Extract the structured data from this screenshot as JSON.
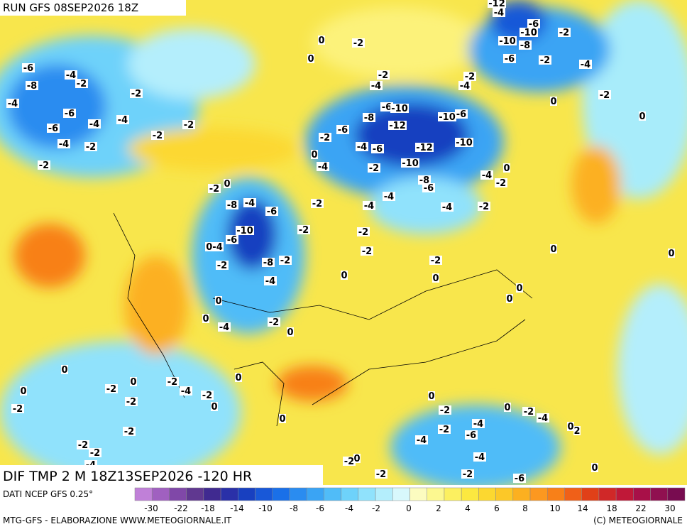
{
  "header": {
    "run": "RUN GFS 08SEP2026 18Z"
  },
  "map": {
    "field": "DIF TMP 2 M 18Z13SEP2026 -120 HR",
    "labels": [
      "-12",
      "-4",
      "-6",
      "-10",
      "-2",
      "0",
      "-2",
      "-10",
      "-8",
      "-6",
      "-8",
      "-4",
      "-2",
      "-4",
      "-2",
      "-6",
      "-4",
      "-4",
      "-6",
      "-2",
      "-2",
      "-4",
      "-2",
      "-2",
      "0",
      "-2",
      "-4",
      "-2",
      "-4",
      "-2",
      "-6",
      "-4",
      "-2",
      "0",
      "0",
      "-6",
      "-10",
      "-8",
      "-12",
      "-6",
      "-10",
      "-2",
      "-6",
      "-4",
      "-6",
      "-12",
      "-10",
      "0",
      "-4",
      "-2",
      "-10",
      "-8",
      "-6",
      "-4",
      "0",
      "-2",
      "-2",
      "0",
      "-8",
      "-4",
      "-6",
      "-2",
      "-4",
      "-4",
      "-4",
      "-2",
      "-10",
      "-6",
      "0-4",
      "-2",
      "-2",
      "-2",
      "-8",
      "-2",
      "-2",
      "-4",
      "0",
      "-2",
      "0",
      "0",
      "0",
      "0",
      "0",
      "0",
      "0",
      "-4",
      "-2",
      "0",
      "0",
      "0",
      "-2",
      "0",
      "-2",
      "-4",
      "-2",
      "-2",
      "0",
      "0",
      "-2",
      "0",
      "0",
      "-2",
      "0",
      "-2",
      "-4",
      "0",
      "2",
      "-2",
      "-2",
      "-4",
      "-6",
      "-4",
      "-2",
      "-2",
      "-4",
      "-2",
      "0",
      "-4",
      "0",
      "-2",
      "-2",
      "-6"
    ]
  },
  "legend": {
    "source": "DATI NCEP GFS 0.25°",
    "colors": [
      "#c080d8",
      "#a060c0",
      "#8048a8",
      "#603890",
      "#402a90",
      "#2a30a8",
      "#1840c0",
      "#1858d8",
      "#1a70e8",
      "#2a8cf0",
      "#3aa4f4",
      "#50bcf8",
      "#6ed2fa",
      "#90e2fc",
      "#b4eefc",
      "#d8f8fc",
      "#fcfcc0",
      "#fcf890",
      "#fcf060",
      "#fce840",
      "#fcd830",
      "#fcc828",
      "#fcb020",
      "#fc9820",
      "#f88018",
      "#f06018",
      "#e04018",
      "#d02828",
      "#c01838",
      "#a81048",
      "#901050",
      "#780c50"
    ],
    "ticks": [
      -30,
      -22,
      -18,
      -14,
      -10,
      -8,
      -6,
      -4,
      -2,
      0,
      2,
      4,
      6,
      8,
      10,
      14,
      18,
      22,
      30
    ]
  },
  "footer": {
    "credit": "MTG-GFS - ELABORAZIONE WWW.METEOGIORNALE.IT",
    "copyright": "(C) METEOGIORNALE"
  }
}
